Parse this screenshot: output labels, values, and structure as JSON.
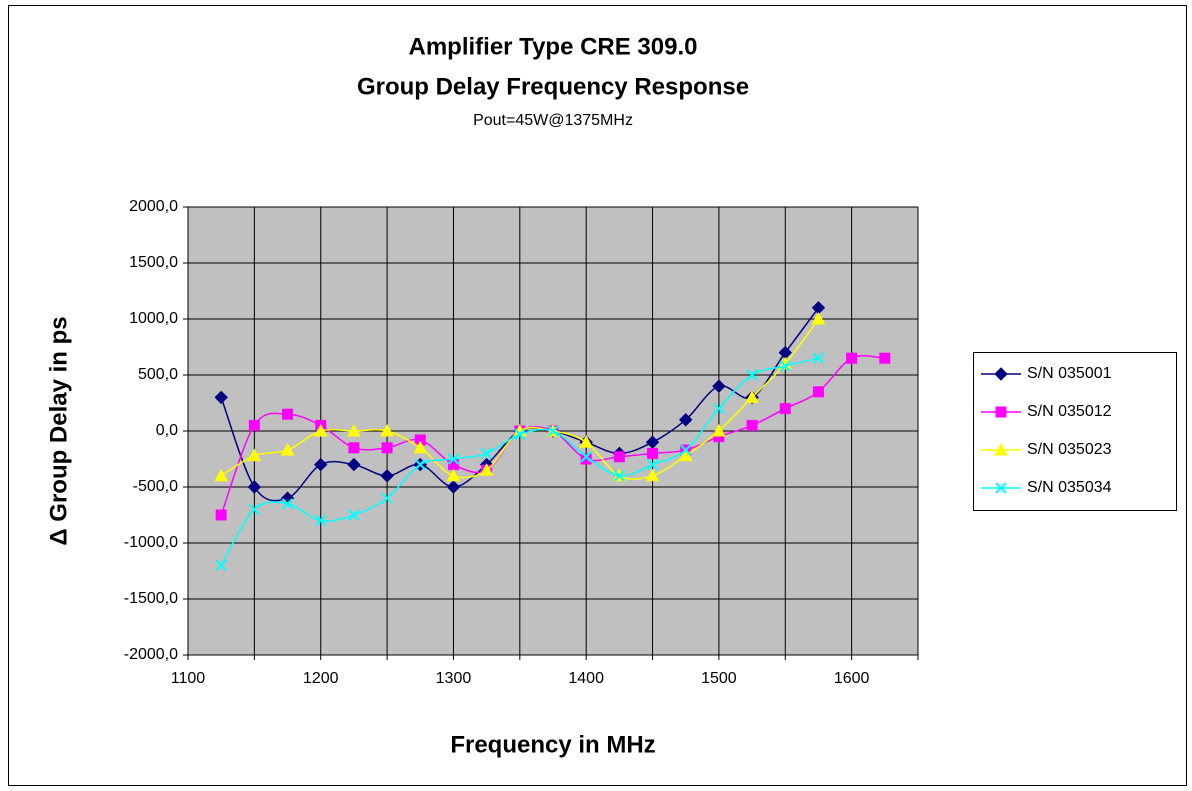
{
  "chart_data": {
    "type": "line",
    "title": [
      "Amplifier Type CRE 309.0",
      "Group Delay Frequency Response"
    ],
    "subtitle": "Pout=45W@1375MHz",
    "xlabel": "Frequency in MHz",
    "ylabel": "Δ Group Delay in ps",
    "xlim": [
      1100,
      1650
    ],
    "xticks": [
      1100,
      1200,
      1300,
      1400,
      1500,
      1600
    ],
    "xminorticks": [
      1150,
      1250,
      1350,
      1450,
      1550,
      1650
    ],
    "ylim": [
      -2000,
      2000
    ],
    "yticks": [
      {
        "value": -2000,
        "label": "-2000,0"
      },
      {
        "value": -1500,
        "label": "-1500,0"
      },
      {
        "value": -1000,
        "label": "-1000,0"
      },
      {
        "value": -500,
        "label": "-500,0"
      },
      {
        "value": 0,
        "label": "0,0"
      },
      {
        "value": 500,
        "label": "500,0"
      },
      {
        "value": 1000,
        "label": "1000,0"
      },
      {
        "value": 1500,
        "label": "1500,0"
      },
      {
        "value": 2000,
        "label": "2000,0"
      }
    ],
    "grid": true,
    "plot_background": "#c0c0c0",
    "legend": "right",
    "series": [
      {
        "name": "S/N 035001",
        "color": "#000080",
        "marker": "diamond",
        "x": [
          1125,
          1150,
          1175,
          1200,
          1225,
          1250,
          1275,
          1300,
          1325,
          1350,
          1375,
          1400,
          1425,
          1450,
          1475,
          1500,
          1525,
          1550,
          1575
        ],
        "values": [
          300,
          -500,
          -600,
          -300,
          -300,
          -400,
          -300,
          -500,
          -300,
          0,
          0,
          -100,
          -200,
          -100,
          100,
          400,
          300,
          700,
          1100
        ]
      },
      {
        "name": "S/N 035012",
        "color": "#ff00ff",
        "marker": "square",
        "x": [
          1125,
          1150,
          1175,
          1200,
          1225,
          1250,
          1275,
          1300,
          1325,
          1350,
          1375,
          1400,
          1425,
          1450,
          1475,
          1500,
          1525,
          1550,
          1575,
          1600,
          1625
        ],
        "values": [
          -750,
          50,
          150,
          50,
          -150,
          -150,
          -80,
          -300,
          -350,
          0,
          0,
          -250,
          -230,
          -200,
          -170,
          -50,
          50,
          200,
          350,
          650,
          650
        ]
      },
      {
        "name": "S/N 035023",
        "color": "#ffff00",
        "marker": "triangle",
        "x": [
          1125,
          1150,
          1175,
          1200,
          1225,
          1250,
          1275,
          1300,
          1325,
          1350,
          1375,
          1400,
          1425,
          1450,
          1475,
          1500,
          1525,
          1550,
          1575
        ],
        "values": [
          -400,
          -220,
          -170,
          0,
          0,
          0,
          -150,
          -400,
          -350,
          0,
          0,
          -100,
          -400,
          -400,
          -220,
          0,
          300,
          600,
          1000
        ]
      },
      {
        "name": "S/N 035034",
        "color": "#00ffff",
        "marker": "x",
        "x": [
          1125,
          1150,
          1175,
          1200,
          1225,
          1250,
          1275,
          1300,
          1325,
          1350,
          1375,
          1400,
          1425,
          1450,
          1475,
          1500,
          1525,
          1550,
          1575
        ],
        "values": [
          -1200,
          -700,
          -650,
          -800,
          -750,
          -600,
          -300,
          -250,
          -200,
          -30,
          0,
          -230,
          -400,
          -300,
          -170,
          200,
          500,
          580,
          650
        ]
      }
    ]
  }
}
